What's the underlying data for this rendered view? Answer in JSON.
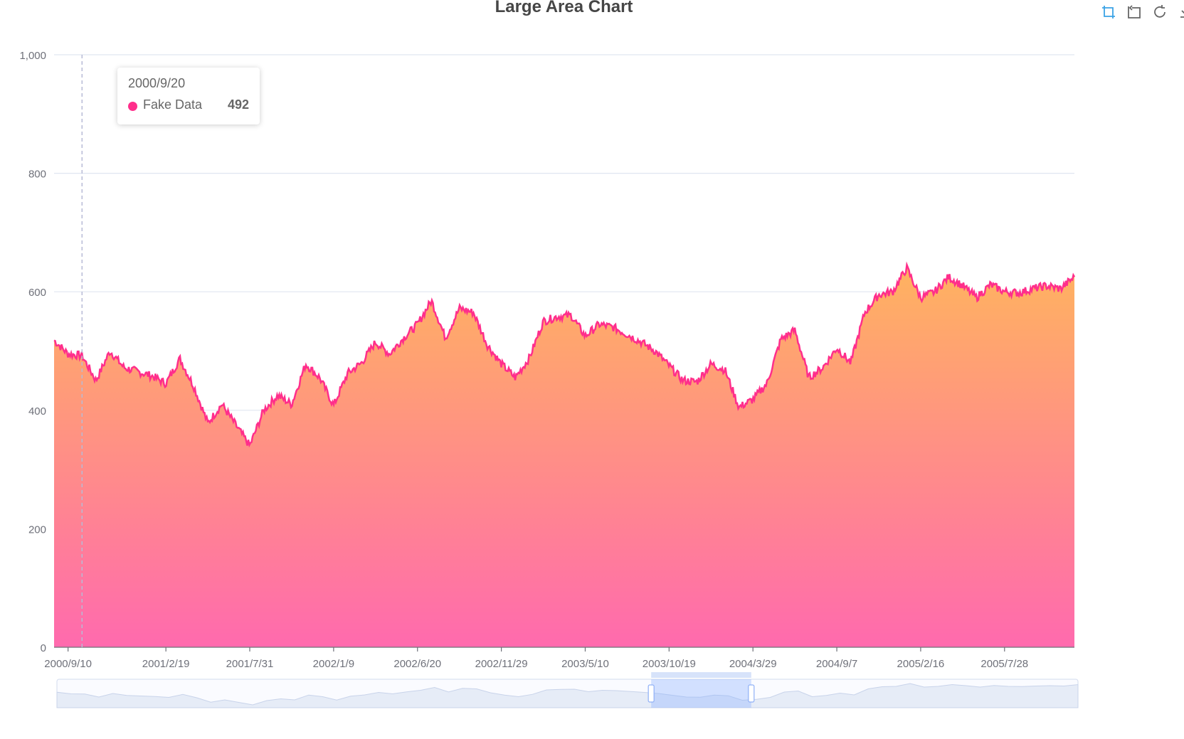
{
  "chart_data": {
    "type": "area",
    "title": "Large Area Chart",
    "series": [
      {
        "name": "Fake Data",
        "line_color": "#ff2e8b",
        "gradient_top": "#ffb35f",
        "gradient_bottom": "#ff6aae"
      }
    ],
    "x_ticks": [
      "2000/9/10",
      "2001/2/19",
      "2001/7/31",
      "2002/1/9",
      "2002/6/20",
      "2002/11/29",
      "2003/5/10",
      "2003/10/19",
      "2004/3/29",
      "2004/9/7",
      "2005/2/16",
      "2005/7/28"
    ],
    "y_ticks": [
      "0",
      "200",
      "400",
      "600",
      "800",
      "1,000"
    ],
    "ylim": [
      0,
      1000
    ],
    "grid": true,
    "x": [
      "2000/8/16",
      "2000/9/10",
      "2000/9/20",
      "2000/10/15",
      "2000/11/10",
      "2000/12/5",
      "2000/12/31",
      "2001/1/25",
      "2001/2/19",
      "2001/3/17",
      "2001/4/11",
      "2001/5/6",
      "2001/6/1",
      "2001/6/26",
      "2001/7/31",
      "2001/8/25",
      "2001/9/20",
      "2001/10/15",
      "2001/11/10",
      "2001/12/5",
      "2002/1/9",
      "2002/2/3",
      "2002/3/1",
      "2002/3/26",
      "2002/4/20",
      "2002/5/16",
      "2002/6/20",
      "2002/7/15",
      "2002/8/10",
      "2002/9/4",
      "2002/9/29",
      "2002/10/25",
      "2002/11/29",
      "2002/12/24",
      "2003/1/18",
      "2003/2/13",
      "2003/3/10",
      "2003/4/4",
      "2003/5/10",
      "2003/6/4",
      "2003/6/29",
      "2003/7/25",
      "2003/8/19",
      "2003/9/13",
      "2003/10/19",
      "2003/11/13",
      "2003/12/8",
      "2004/1/2",
      "2004/1/28",
      "2004/2/22",
      "2004/3/29",
      "2004/4/23",
      "2004/5/18",
      "2004/6/13",
      "2004/7/8",
      "2004/8/2",
      "2004/9/7",
      "2004/10/2",
      "2004/10/27",
      "2004/11/21",
      "2004/12/17",
      "2005/1/11",
      "2005/2/16",
      "2005/3/13",
      "2005/4/7",
      "2005/5/3",
      "2005/5/28",
      "2005/6/22",
      "2005/7/28",
      "2005/8/22",
      "2005/9/16",
      "2005/10/12",
      "2005/11/6",
      "2005/11/20"
    ],
    "y": [
      518,
      495,
      492,
      450,
      500,
      472,
      465,
      458,
      445,
      487,
      440,
      378,
      410,
      375,
      340,
      400,
      425,
      410,
      478,
      455,
      408,
      462,
      480,
      515,
      495,
      522,
      545,
      585,
      522,
      572,
      565,
      510,
      478,
      455,
      488,
      550,
      558,
      560,
      525,
      545,
      540,
      528,
      515,
      500,
      475,
      450,
      448,
      478,
      468,
      405,
      418,
      445,
      520,
      535,
      455,
      472,
      505,
      480,
      565,
      595,
      600,
      640,
      590,
      600,
      625,
      610,
      590,
      612,
      600,
      598,
      605,
      610,
      605,
      625
    ],
    "x_tick_index": [
      1,
      8,
      14,
      20,
      26,
      32,
      38,
      44,
      50,
      56,
      62,
      68
    ]
  },
  "tooltip": {
    "date": "2000/9/20",
    "series_name": "Fake Data",
    "value": "492"
  },
  "toolbox": {
    "icons": [
      "zoom-icon",
      "zoom-reset-icon",
      "restore-icon",
      "save-image-icon"
    ]
  }
}
